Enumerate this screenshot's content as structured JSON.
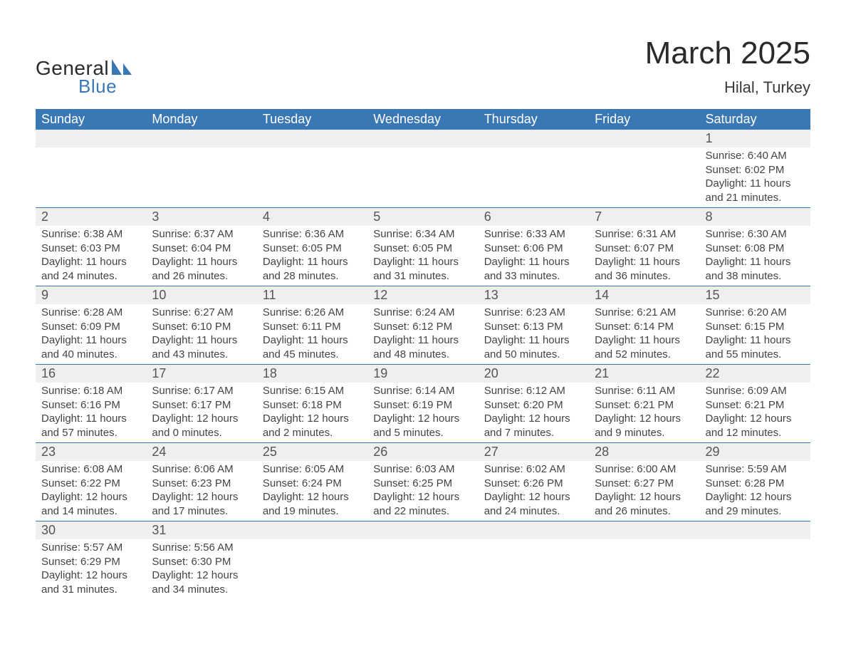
{
  "logo": {
    "text1": "General",
    "text2": "Blue",
    "shape_color": "#3a78b5",
    "text1_color": "#2a2a2a",
    "text2_color": "#3a78b5"
  },
  "title": "March 2025",
  "subtitle": "Hilal, Turkey",
  "colors": {
    "header_bg": "#3a78b5",
    "header_text": "#ffffff",
    "daynum_bg": "#efefef",
    "row_border": "#3a78b5",
    "body_text": "#444444",
    "daynum_text": "#555555"
  },
  "day_headers": [
    "Sunday",
    "Monday",
    "Tuesday",
    "Wednesday",
    "Thursday",
    "Friday",
    "Saturday"
  ],
  "weeks": [
    [
      null,
      null,
      null,
      null,
      null,
      null,
      {
        "n": "1",
        "sr": "Sunrise: 6:40 AM",
        "ss": "Sunset: 6:02 PM",
        "d1": "Daylight: 11 hours",
        "d2": "and 21 minutes."
      }
    ],
    [
      {
        "n": "2",
        "sr": "Sunrise: 6:38 AM",
        "ss": "Sunset: 6:03 PM",
        "d1": "Daylight: 11 hours",
        "d2": "and 24 minutes."
      },
      {
        "n": "3",
        "sr": "Sunrise: 6:37 AM",
        "ss": "Sunset: 6:04 PM",
        "d1": "Daylight: 11 hours",
        "d2": "and 26 minutes."
      },
      {
        "n": "4",
        "sr": "Sunrise: 6:36 AM",
        "ss": "Sunset: 6:05 PM",
        "d1": "Daylight: 11 hours",
        "d2": "and 28 minutes."
      },
      {
        "n": "5",
        "sr": "Sunrise: 6:34 AM",
        "ss": "Sunset: 6:05 PM",
        "d1": "Daylight: 11 hours",
        "d2": "and 31 minutes."
      },
      {
        "n": "6",
        "sr": "Sunrise: 6:33 AM",
        "ss": "Sunset: 6:06 PM",
        "d1": "Daylight: 11 hours",
        "d2": "and 33 minutes."
      },
      {
        "n": "7",
        "sr": "Sunrise: 6:31 AM",
        "ss": "Sunset: 6:07 PM",
        "d1": "Daylight: 11 hours",
        "d2": "and 36 minutes."
      },
      {
        "n": "8",
        "sr": "Sunrise: 6:30 AM",
        "ss": "Sunset: 6:08 PM",
        "d1": "Daylight: 11 hours",
        "d2": "and 38 minutes."
      }
    ],
    [
      {
        "n": "9",
        "sr": "Sunrise: 6:28 AM",
        "ss": "Sunset: 6:09 PM",
        "d1": "Daylight: 11 hours",
        "d2": "and 40 minutes."
      },
      {
        "n": "10",
        "sr": "Sunrise: 6:27 AM",
        "ss": "Sunset: 6:10 PM",
        "d1": "Daylight: 11 hours",
        "d2": "and 43 minutes."
      },
      {
        "n": "11",
        "sr": "Sunrise: 6:26 AM",
        "ss": "Sunset: 6:11 PM",
        "d1": "Daylight: 11 hours",
        "d2": "and 45 minutes."
      },
      {
        "n": "12",
        "sr": "Sunrise: 6:24 AM",
        "ss": "Sunset: 6:12 PM",
        "d1": "Daylight: 11 hours",
        "d2": "and 48 minutes."
      },
      {
        "n": "13",
        "sr": "Sunrise: 6:23 AM",
        "ss": "Sunset: 6:13 PM",
        "d1": "Daylight: 11 hours",
        "d2": "and 50 minutes."
      },
      {
        "n": "14",
        "sr": "Sunrise: 6:21 AM",
        "ss": "Sunset: 6:14 PM",
        "d1": "Daylight: 11 hours",
        "d2": "and 52 minutes."
      },
      {
        "n": "15",
        "sr": "Sunrise: 6:20 AM",
        "ss": "Sunset: 6:15 PM",
        "d1": "Daylight: 11 hours",
        "d2": "and 55 minutes."
      }
    ],
    [
      {
        "n": "16",
        "sr": "Sunrise: 6:18 AM",
        "ss": "Sunset: 6:16 PM",
        "d1": "Daylight: 11 hours",
        "d2": "and 57 minutes."
      },
      {
        "n": "17",
        "sr": "Sunrise: 6:17 AM",
        "ss": "Sunset: 6:17 PM",
        "d1": "Daylight: 12 hours",
        "d2": "and 0 minutes."
      },
      {
        "n": "18",
        "sr": "Sunrise: 6:15 AM",
        "ss": "Sunset: 6:18 PM",
        "d1": "Daylight: 12 hours",
        "d2": "and 2 minutes."
      },
      {
        "n": "19",
        "sr": "Sunrise: 6:14 AM",
        "ss": "Sunset: 6:19 PM",
        "d1": "Daylight: 12 hours",
        "d2": "and 5 minutes."
      },
      {
        "n": "20",
        "sr": "Sunrise: 6:12 AM",
        "ss": "Sunset: 6:20 PM",
        "d1": "Daylight: 12 hours",
        "d2": "and 7 minutes."
      },
      {
        "n": "21",
        "sr": "Sunrise: 6:11 AM",
        "ss": "Sunset: 6:21 PM",
        "d1": "Daylight: 12 hours",
        "d2": "and 9 minutes."
      },
      {
        "n": "22",
        "sr": "Sunrise: 6:09 AM",
        "ss": "Sunset: 6:21 PM",
        "d1": "Daylight: 12 hours",
        "d2": "and 12 minutes."
      }
    ],
    [
      {
        "n": "23",
        "sr": "Sunrise: 6:08 AM",
        "ss": "Sunset: 6:22 PM",
        "d1": "Daylight: 12 hours",
        "d2": "and 14 minutes."
      },
      {
        "n": "24",
        "sr": "Sunrise: 6:06 AM",
        "ss": "Sunset: 6:23 PM",
        "d1": "Daylight: 12 hours",
        "d2": "and 17 minutes."
      },
      {
        "n": "25",
        "sr": "Sunrise: 6:05 AM",
        "ss": "Sunset: 6:24 PM",
        "d1": "Daylight: 12 hours",
        "d2": "and 19 minutes."
      },
      {
        "n": "26",
        "sr": "Sunrise: 6:03 AM",
        "ss": "Sunset: 6:25 PM",
        "d1": "Daylight: 12 hours",
        "d2": "and 22 minutes."
      },
      {
        "n": "27",
        "sr": "Sunrise: 6:02 AM",
        "ss": "Sunset: 6:26 PM",
        "d1": "Daylight: 12 hours",
        "d2": "and 24 minutes."
      },
      {
        "n": "28",
        "sr": "Sunrise: 6:00 AM",
        "ss": "Sunset: 6:27 PM",
        "d1": "Daylight: 12 hours",
        "d2": "and 26 minutes."
      },
      {
        "n": "29",
        "sr": "Sunrise: 5:59 AM",
        "ss": "Sunset: 6:28 PM",
        "d1": "Daylight: 12 hours",
        "d2": "and 29 minutes."
      }
    ],
    [
      {
        "n": "30",
        "sr": "Sunrise: 5:57 AM",
        "ss": "Sunset: 6:29 PM",
        "d1": "Daylight: 12 hours",
        "d2": "and 31 minutes."
      },
      {
        "n": "31",
        "sr": "Sunrise: 5:56 AM",
        "ss": "Sunset: 6:30 PM",
        "d1": "Daylight: 12 hours",
        "d2": "and 34 minutes."
      },
      null,
      null,
      null,
      null,
      null
    ]
  ]
}
